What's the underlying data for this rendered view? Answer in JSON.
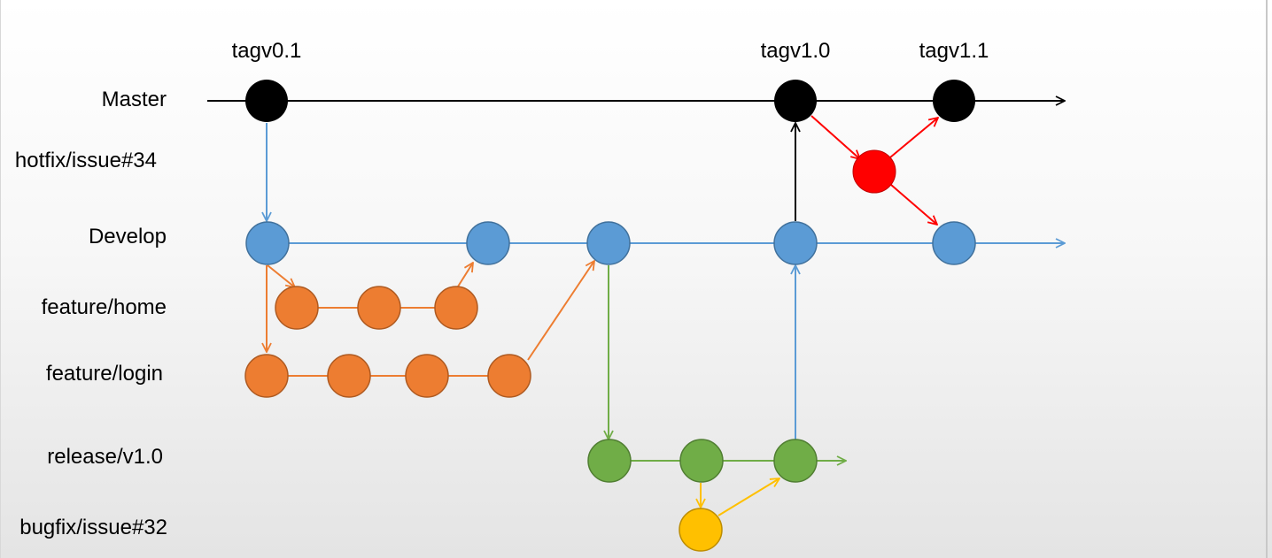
{
  "tags": [
    {
      "id": "tag-v01",
      "label": "tagv0.1"
    },
    {
      "id": "tag-v10",
      "label": "tagv1.0"
    },
    {
      "id": "tag-v11",
      "label": "tagv1.1"
    }
  ],
  "branches": [
    {
      "id": "master",
      "label": "Master",
      "color": "#000000"
    },
    {
      "id": "hotfix",
      "label": "hotfix/issue#34",
      "color": "#ff0000"
    },
    {
      "id": "develop",
      "label": "Develop",
      "color": "#5b9bd5"
    },
    {
      "id": "feature-home",
      "label": "feature/home",
      "color": "#ed7d31"
    },
    {
      "id": "feature-login",
      "label": "feature/login",
      "color": "#ed7d31"
    },
    {
      "id": "release",
      "label": "release/v1.0",
      "color": "#70ad47"
    },
    {
      "id": "bugfix",
      "label": "bugfix/issue#32",
      "color": "#ffc000"
    }
  ],
  "colors": {
    "master": "#000000",
    "hotfix": "#ff0000",
    "develop": "#5b9bd5",
    "develop_stroke": "#41719c",
    "feature": "#ed7d31",
    "feature_stroke": "#ae5a21",
    "release": "#70ad47",
    "release_stroke": "#507e32",
    "bugfix": "#ffc000",
    "bugfix_stroke": "#bc8c00"
  }
}
